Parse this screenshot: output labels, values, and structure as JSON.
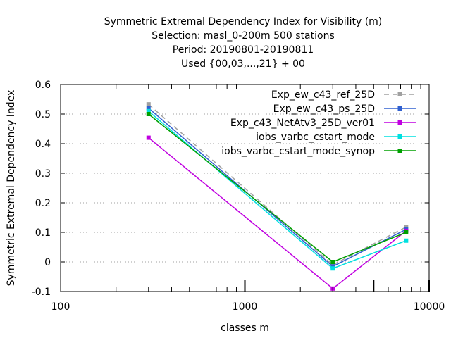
{
  "chart_data": {
    "type": "line",
    "title_lines": [
      "Symmetric Extremal Dependency Index  for Visibility (m)",
      "Selection: masl_0-200m    500 stations",
      "Period: 20190801-20190811",
      "Used {00,03,...,21} + 00"
    ],
    "xlabel": "classes m",
    "ylabel": "Symmetric Extremal Dependency Index",
    "x_scale": "log",
    "xlim": [
      100,
      10000
    ],
    "ylim": [
      -0.1,
      0.6
    ],
    "x_ticks": [
      100,
      1000,
      10000
    ],
    "x_tick_labels": [
      "100",
      "1000",
      "10000"
    ],
    "y_ticks": [
      -0.1,
      0,
      0.1,
      0.2,
      0.3,
      0.4,
      0.5,
      0.6
    ],
    "y_tick_labels": [
      "-0.1",
      "0",
      "0.1",
      "0.2",
      "0.3",
      "0.4",
      "0.5",
      "0.6"
    ],
    "grid": true,
    "legend_position": "top-right",
    "x": [
      300,
      3000,
      7500
    ],
    "series": [
      {
        "name": "Exp_ew_c43_ref_25D",
        "values": [
          0.533,
          -0.01,
          0.118
        ],
        "color": "#a0a0a0",
        "dashed": true
      },
      {
        "name": "Exp_ew_c43_ps_25D",
        "values": [
          0.52,
          -0.015,
          0.11
        ],
        "color": "#3060d0",
        "dashed": false
      },
      {
        "name": "Exp_c43_NetAtv3_25D_ver01",
        "values": [
          0.42,
          -0.09,
          0.105
        ],
        "color": "#c000e0",
        "dashed": false
      },
      {
        "name": "iobs_varbc_cstart_mode",
        "values": [
          0.51,
          -0.022,
          0.072
        ],
        "color": "#00e0e0",
        "dashed": false
      },
      {
        "name": "iobs_varbc_cstart_mode_synop",
        "values": [
          0.5,
          0.0,
          0.1
        ],
        "color": "#00a000",
        "dashed": false
      }
    ]
  }
}
